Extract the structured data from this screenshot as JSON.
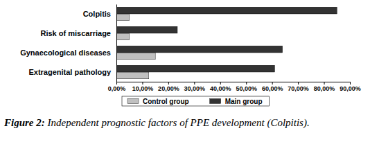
{
  "chart_data": {
    "type": "bar",
    "orientation": "horizontal",
    "title": "Figure 2: Independent prognostic factors of PPE development (Colpitis).",
    "categories": [
      "Colpitis",
      "Risk of miscarriage",
      "Gynaecological diseases",
      "Extragenital pathology"
    ],
    "series": [
      {
        "name": "Control group",
        "color": "#c0c0c0",
        "values": [
          5,
          5,
          15,
          12.5
        ]
      },
      {
        "name": "Main group",
        "color": "#333333",
        "values": [
          85,
          23.5,
          64,
          61
        ]
      }
    ],
    "xlim": [
      0,
      90
    ],
    "xticks": [
      {
        "value": 0,
        "label": "0,00%"
      },
      {
        "value": 10,
        "label": "10,00%"
      },
      {
        "value": 20,
        "label": "20,00%"
      },
      {
        "value": 30,
        "label": "30,00%"
      },
      {
        "value": 40,
        "label": "40,00%"
      },
      {
        "value": 50,
        "label": "50,00%"
      },
      {
        "value": 60,
        "label": "60,00%"
      },
      {
        "value": 70,
        "label": "70,00%"
      },
      {
        "value": 80,
        "label": "80,00%"
      },
      {
        "value": 90,
        "label": "90,00%"
      }
    ],
    "legend": "bottom"
  }
}
